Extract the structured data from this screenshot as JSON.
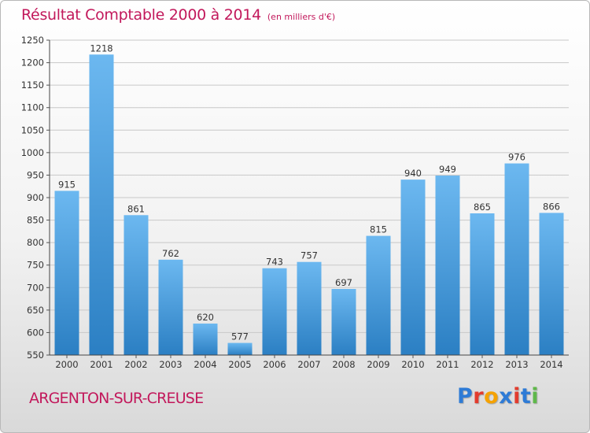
{
  "title": "Résultat Comptable 2000 à 2014",
  "subtitle": "(en milliers d'€)",
  "city": "ARGENTON-SUR-CREUSE",
  "logo": {
    "text": "Proxiti",
    "letter_colors": [
      "#2e7bd6",
      "#e23c2e",
      "#f5a200",
      "#2e7bd6",
      "#e23c2e",
      "#2e7bd6",
      "#5fb84a"
    ]
  },
  "colors": {
    "title": "#c2185b",
    "bar_top": "#6cb8f0",
    "bar_bottom": "#2b7fc3",
    "grid": "#c8c8c8"
  },
  "chart_data": {
    "type": "bar",
    "title": "Résultat Comptable 2000 à 2014",
    "subtitle": "(en milliers d'€)",
    "categories": [
      "2000",
      "2001",
      "2002",
      "2003",
      "2004",
      "2005",
      "2006",
      "2007",
      "2008",
      "2009",
      "2010",
      "2011",
      "2012",
      "2013",
      "2014"
    ],
    "values": [
      915,
      1218,
      861,
      762,
      620,
      577,
      743,
      757,
      697,
      815,
      940,
      949,
      865,
      976,
      866
    ],
    "ylim": [
      550,
      1250
    ],
    "yticks": [
      550,
      600,
      650,
      700,
      750,
      800,
      850,
      900,
      950,
      1000,
      1050,
      1100,
      1150,
      1200,
      1250
    ],
    "grid": true,
    "show_data_labels": true
  }
}
